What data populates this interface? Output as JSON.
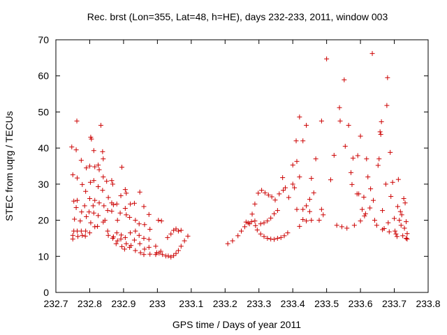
{
  "chart_data": {
    "type": "scatter",
    "title": "Rec. brst (Lon=355, Lat=48, h=HE), days 232-233, 2011, window 003",
    "xlabel": "GPS time / Days of year 2011",
    "ylabel": "STEC from uqrg / TECUs",
    "xlim": [
      232.7,
      233.8
    ],
    "ylim": [
      0,
      70
    ],
    "xticks": [
      "232.7",
      "232.8",
      "232.9",
      "233",
      "233.1",
      "233.2",
      "233.3",
      "233.4",
      "233.5",
      "233.6",
      "233.7",
      "233.8"
    ],
    "yticks": [
      "0",
      "10",
      "20",
      "30",
      "40",
      "50",
      "60",
      "70"
    ],
    "grid": false,
    "marker": "+",
    "point_color": "#cc0000",
    "points": [
      [
        232.747,
        40.3
      ],
      [
        232.75,
        32.6
      ],
      [
        232.753,
        25.3
      ],
      [
        232.755,
        20.3
      ],
      [
        232.753,
        17.0
      ],
      [
        232.75,
        15.8
      ],
      [
        232.75,
        14.8
      ],
      [
        232.76,
        39.5
      ],
      [
        232.763,
        31.7
      ],
      [
        232.763,
        25.5
      ],
      [
        232.76,
        23.5
      ],
      [
        232.763,
        17.0
      ],
      [
        232.765,
        15.5
      ],
      [
        232.762,
        47.5
      ],
      [
        232.775,
        36.6
      ],
      [
        232.778,
        29.9
      ],
      [
        232.776,
        22.3
      ],
      [
        232.772,
        19.8
      ],
      [
        232.775,
        17.0
      ],
      [
        232.778,
        15.8
      ],
      [
        232.79,
        34.5
      ],
      [
        232.788,
        28.0
      ],
      [
        232.785,
        24.0
      ],
      [
        232.79,
        21.0
      ],
      [
        232.788,
        17.0
      ],
      [
        232.787,
        15.6
      ],
      [
        232.8,
        35.0
      ],
      [
        232.802,
        30.5
      ],
      [
        232.8,
        26.0
      ],
      [
        232.798,
        22.3
      ],
      [
        232.803,
        19.3
      ],
      [
        232.8,
        16.5
      ],
      [
        232.803,
        43.0
      ],
      [
        232.805,
        42.5
      ],
      [
        232.812,
        39.3
      ],
      [
        232.815,
        34.8
      ],
      [
        232.812,
        31.0
      ],
      [
        232.815,
        25.5
      ],
      [
        232.812,
        22.0
      ],
      [
        232.815,
        18.2
      ],
      [
        232.81,
        24.0
      ],
      [
        232.825,
        35.3
      ],
      [
        232.828,
        34.0
      ],
      [
        232.825,
        29.3
      ],
      [
        232.828,
        24.8
      ],
      [
        232.825,
        21.3
      ],
      [
        232.823,
        18.3
      ],
      [
        232.833,
        46.3
      ],
      [
        232.838,
        39.0
      ],
      [
        232.84,
        37.0
      ],
      [
        232.84,
        32.0
      ],
      [
        232.838,
        28.3
      ],
      [
        232.842,
        24.0
      ],
      [
        232.845,
        20.0
      ],
      [
        232.84,
        19.5
      ],
      [
        232.85,
        30.8
      ],
      [
        232.855,
        26.3
      ],
      [
        232.853,
        22.7
      ],
      [
        232.853,
        17.0
      ],
      [
        232.855,
        15.8
      ],
      [
        232.865,
        31.0
      ],
      [
        232.868,
        30.0
      ],
      [
        232.865,
        24.8
      ],
      [
        232.87,
        24.3
      ],
      [
        232.865,
        22.5
      ],
      [
        232.87,
        15.4
      ],
      [
        232.868,
        15.0
      ],
      [
        232.88,
        24.5
      ],
      [
        232.882,
        20.0
      ],
      [
        232.88,
        16.5
      ],
      [
        232.882,
        14.3
      ],
      [
        232.878,
        13.5
      ],
      [
        232.895,
        34.7
      ],
      [
        232.892,
        26.8
      ],
      [
        232.89,
        22.0
      ],
      [
        232.893,
        15.9
      ],
      [
        232.892,
        14.8
      ],
      [
        232.895,
        12.7
      ],
      [
        232.905,
        28.5
      ],
      [
        232.908,
        27.5
      ],
      [
        232.905,
        23.3
      ],
      [
        232.908,
        21.5
      ],
      [
        232.905,
        15.2
      ],
      [
        232.908,
        13.5
      ],
      [
        232.903,
        12.0
      ],
      [
        232.92,
        24.5
      ],
      [
        232.918,
        20.8
      ],
      [
        232.92,
        16.5
      ],
      [
        232.922,
        13.0
      ],
      [
        232.918,
        12.5
      ],
      [
        232.932,
        24.7
      ],
      [
        232.935,
        20.0
      ],
      [
        232.935,
        17.0
      ],
      [
        232.932,
        14.5
      ],
      [
        232.935,
        11.6
      ],
      [
        232.948,
        27.8
      ],
      [
        232.946,
        19.0
      ],
      [
        232.946,
        15.8
      ],
      [
        232.948,
        13.5
      ],
      [
        232.95,
        11.0
      ],
      [
        232.96,
        23.8
      ],
      [
        232.962,
        18.8
      ],
      [
        232.96,
        15.0
      ],
      [
        232.962,
        12.0
      ],
      [
        232.96,
        10.5
      ],
      [
        232.975,
        21.6
      ],
      [
        232.978,
        17.5
      ],
      [
        232.975,
        14.7
      ],
      [
        232.975,
        12.5
      ],
      [
        232.978,
        10.6
      ],
      [
        232.995,
        12.8
      ],
      [
        232.998,
        11.0
      ],
      [
        232.995,
        10.5
      ],
      [
        233.005,
        10.9
      ],
      [
        233.003,
        20.0
      ],
      [
        233.01,
        11.4
      ],
      [
        233.015,
        10.5
      ],
      [
        233.012,
        19.8
      ],
      [
        233.025,
        10.1
      ],
      [
        233.032,
        10.1
      ],
      [
        233.04,
        9.8
      ],
      [
        233.048,
        10.2
      ],
      [
        233.055,
        10.8
      ],
      [
        233.062,
        11.6
      ],
      [
        233.07,
        12.8
      ],
      [
        233.08,
        14.3
      ],
      [
        233.09,
        15.6
      ],
      [
        233.03,
        15.2
      ],
      [
        233.04,
        16.2
      ],
      [
        233.048,
        17.2
      ],
      [
        233.055,
        17.6
      ],
      [
        233.062,
        17.0
      ],
      [
        233.07,
        17.2
      ],
      [
        233.208,
        13.5
      ],
      [
        233.222,
        14.3
      ],
      [
        233.238,
        15.7
      ],
      [
        233.248,
        17.0
      ],
      [
        233.258,
        18.2
      ],
      [
        233.268,
        19.3
      ],
      [
        233.278,
        19.6
      ],
      [
        233.288,
        19.8
      ],
      [
        233.262,
        19.5
      ],
      [
        233.272,
        19.0
      ],
      [
        233.28,
        21.7
      ],
      [
        233.29,
        18.5
      ],
      [
        233.295,
        17.3
      ],
      [
        233.288,
        24.5
      ],
      [
        233.298,
        27.5
      ],
      [
        233.308,
        28.3
      ],
      [
        233.318,
        27.6
      ],
      [
        233.328,
        27.0
      ],
      [
        233.338,
        26.5
      ],
      [
        233.348,
        25.6
      ],
      [
        233.305,
        19.0
      ],
      [
        233.315,
        19.3
      ],
      [
        233.325,
        19.8
      ],
      [
        233.335,
        20.6
      ],
      [
        233.345,
        21.8
      ],
      [
        233.355,
        22.7
      ],
      [
        233.305,
        16.2
      ],
      [
        233.315,
        15.5
      ],
      [
        233.325,
        15.0
      ],
      [
        233.335,
        14.8
      ],
      [
        233.345,
        14.7
      ],
      [
        233.355,
        15.0
      ],
      [
        233.365,
        15.2
      ],
      [
        233.375,
        15.7
      ],
      [
        233.385,
        16.5
      ],
      [
        233.36,
        27.3
      ],
      [
        233.37,
        31.8
      ],
      [
        233.378,
        29.0
      ],
      [
        233.388,
        26.3
      ],
      [
        233.372,
        28.3
      ],
      [
        233.4,
        35.3
      ],
      [
        233.41,
        42.0
      ],
      [
        233.42,
        48.6
      ],
      [
        233.43,
        42.0
      ],
      [
        233.44,
        46.3
      ],
      [
        233.4,
        30.0
      ],
      [
        233.405,
        29.0
      ],
      [
        233.412,
        36.3
      ],
      [
        233.42,
        32.0
      ],
      [
        233.43,
        23.0
      ],
      [
        233.44,
        24.0
      ],
      [
        233.45,
        22.4
      ],
      [
        233.455,
        31.6
      ],
      [
        233.45,
        25.8
      ],
      [
        233.455,
        20.0
      ],
      [
        233.412,
        23.0
      ],
      [
        233.42,
        18.3
      ],
      [
        233.43,
        20.2
      ],
      [
        233.44,
        19.8
      ],
      [
        233.462,
        27.6
      ],
      [
        233.468,
        37.0
      ],
      [
        233.478,
        20.0
      ],
      [
        233.485,
        47.5
      ],
      [
        233.485,
        23.0
      ],
      [
        233.49,
        21.5
      ],
      [
        233.5,
        64.7
      ],
      [
        233.512,
        31.2
      ],
      [
        233.522,
        38.0
      ],
      [
        233.53,
        18.6
      ],
      [
        233.538,
        51.2
      ],
      [
        233.54,
        47.5
      ],
      [
        233.545,
        18.2
      ],
      [
        233.552,
        58.9
      ],
      [
        233.555,
        40.5
      ],
      [
        233.56,
        17.8
      ],
      [
        233.565,
        46.3
      ],
      [
        233.572,
        33.2
      ],
      [
        233.575,
        29.9
      ],
      [
        233.578,
        37.2
      ],
      [
        233.582,
        18.6
      ],
      [
        233.59,
        27.3
      ],
      [
        233.592,
        37.9
      ],
      [
        233.595,
        27.3
      ],
      [
        233.6,
        43.3
      ],
      [
        233.6,
        19.8
      ],
      [
        233.605,
        23.0
      ],
      [
        233.61,
        26.4
      ],
      [
        233.612,
        21.2
      ],
      [
        233.615,
        21.8
      ],
      [
        233.618,
        37.0
      ],
      [
        233.622,
        32.0
      ],
      [
        233.628,
        23.4
      ],
      [
        233.63,
        28.7
      ],
      [
        233.635,
        66.2
      ],
      [
        233.638,
        25.5
      ],
      [
        233.642,
        20.0
      ],
      [
        233.648,
        18.6
      ],
      [
        233.652,
        35.2
      ],
      [
        233.655,
        37.0
      ],
      [
        233.658,
        44.5
      ],
      [
        233.66,
        43.8
      ],
      [
        233.662,
        47.3
      ],
      [
        233.665,
        22.7
      ],
      [
        233.665,
        17.4
      ],
      [
        233.67,
        17.7
      ],
      [
        233.675,
        30.0
      ],
      [
        233.678,
        51.8
      ],
      [
        233.68,
        59.5
      ],
      [
        233.682,
        19.3
      ],
      [
        233.685,
        16.8
      ],
      [
        233.688,
        38.8
      ],
      [
        233.69,
        26.6
      ],
      [
        233.695,
        30.5
      ],
      [
        233.7,
        20.5
      ],
      [
        233.702,
        17.0
      ],
      [
        233.705,
        16.2
      ],
      [
        233.708,
        15.5
      ],
      [
        233.71,
        23.8
      ],
      [
        233.712,
        31.3
      ],
      [
        233.715,
        20.0
      ],
      [
        233.718,
        22.4
      ],
      [
        233.72,
        18.6
      ],
      [
        233.722,
        21.5
      ],
      [
        233.725,
        15.7
      ],
      [
        233.728,
        26.0
      ],
      [
        233.73,
        17.8
      ],
      [
        233.732,
        24.8
      ],
      [
        233.735,
        19.6
      ],
      [
        233.735,
        15.0
      ],
      [
        233.738,
        14.8
      ],
      [
        233.738,
        16.3
      ]
    ]
  }
}
